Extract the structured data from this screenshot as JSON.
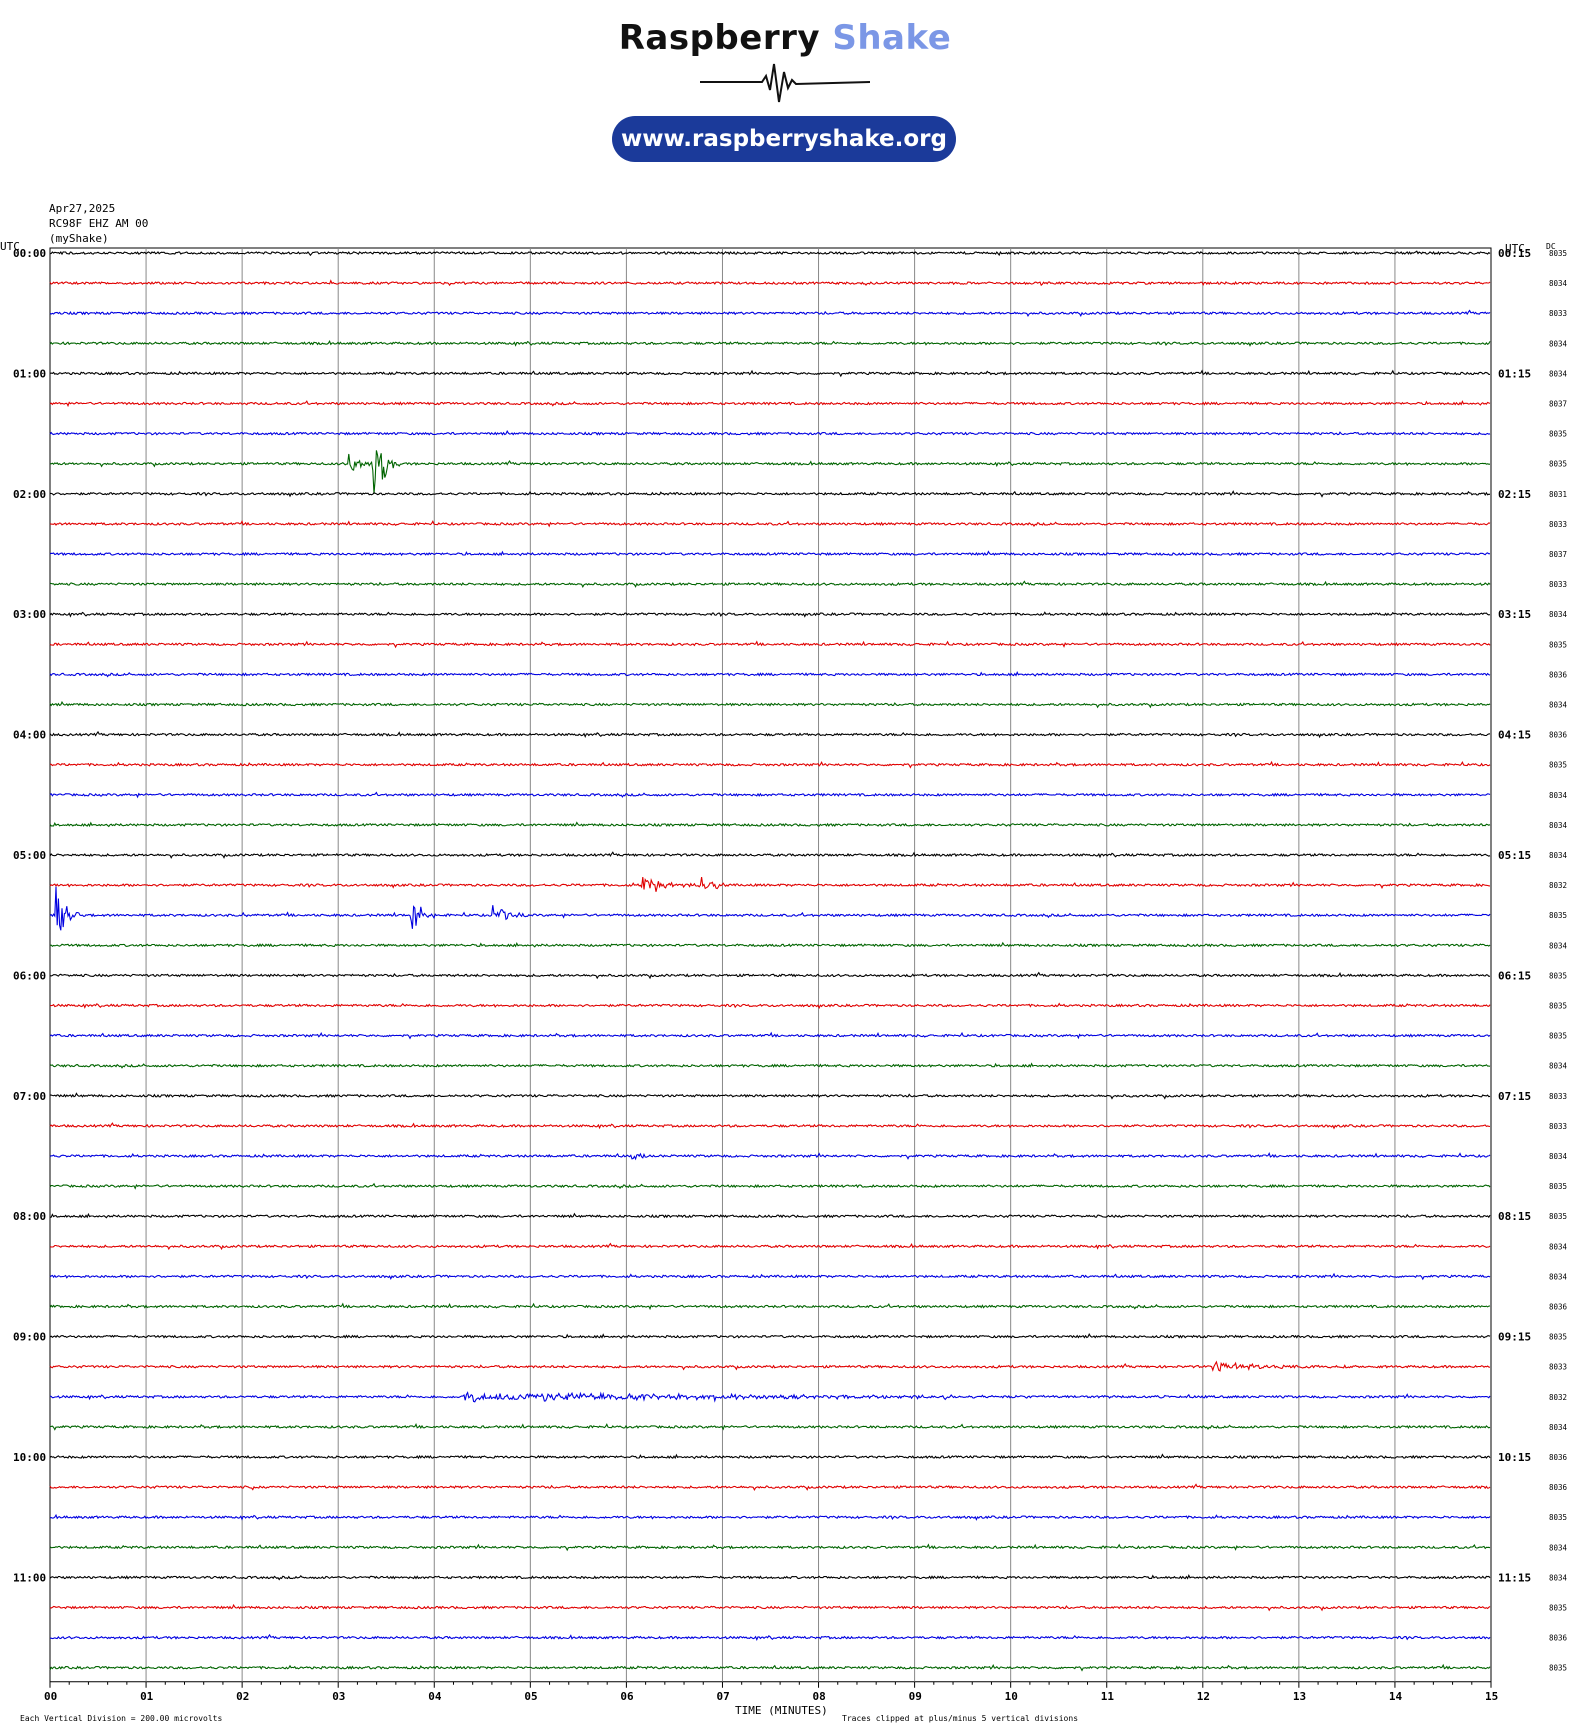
{
  "header": {
    "brand_primary": "Raspberry",
    "brand_secondary": "Shake",
    "url": "www.raspberryshake.org",
    "colors": {
      "brand_dark": "#111111",
      "brand_light": "#7b97e6",
      "pill": "#1b3a9a"
    }
  },
  "meta": {
    "date": "Apr27,2025",
    "station": "RC98F EHZ AM 00",
    "network": "(myShake)"
  },
  "footer": {
    "vertical_division": "Each Vertical Division =  200.00 microvolts",
    "clipping": "Traces clipped at plus/minus 5 vertical divisions"
  },
  "chart_data": {
    "type": "line",
    "title": "",
    "xlabel": "TIME (MINUTES)",
    "ylabel": "",
    "left_axis_label": "UTC",
    "right_axis_label": "UTC",
    "dc_column_label": "DC",
    "xlim": [
      0,
      15
    ],
    "x_ticks": [
      "00",
      "01",
      "02",
      "03",
      "04",
      "05",
      "06",
      "07",
      "08",
      "09",
      "10",
      "11",
      "12",
      "13",
      "14",
      "15"
    ],
    "grid": true,
    "minutes_per_line": 15,
    "line_colors": [
      "#000000",
      "#e00000",
      "#0000e0",
      "#006400"
    ],
    "left_hour_labels": [
      "00:00",
      "01:00",
      "02:00",
      "03:00",
      "04:00",
      "05:00",
      "06:00",
      "07:00",
      "08:00",
      "09:00",
      "10:00",
      "11:00"
    ],
    "right_hour_labels": [
      "00:15",
      "01:15",
      "02:15",
      "03:15",
      "04:15",
      "05:15",
      "06:15",
      "07:15",
      "08:15",
      "09:15",
      "10:15",
      "11:15"
    ],
    "dc_offsets": [
      "8035",
      "8034",
      "8033",
      "8034",
      "8034",
      "8037",
      "8035",
      "8035",
      "8031",
      "8033",
      "8037",
      "8033",
      "8034",
      "8035",
      "8036",
      "8034",
      "8036",
      "8035",
      "8034",
      "8034",
      "8034",
      "8032",
      "8035",
      "8034",
      "8035",
      "8035",
      "8035",
      "8034",
      "8033",
      "8033",
      "8034",
      "8035",
      "8035",
      "8034",
      "8034",
      "8036",
      "8035",
      "8033",
      "8032",
      "8034",
      "8036",
      "8036",
      "8035",
      "8034",
      "8034",
      "8035",
      "8036",
      "8035"
    ],
    "events": [
      {
        "line": 7,
        "minute": 3.35,
        "amplitude": 7,
        "duration": 0.3
      },
      {
        "line": 7,
        "minute": 3.1,
        "amplitude": 1.5,
        "duration": 0.4
      },
      {
        "line": 21,
        "minute": 6.15,
        "amplitude": 1.6,
        "duration": 0.6
      },
      {
        "line": 21,
        "minute": 6.75,
        "amplitude": 1.8,
        "duration": 0.3
      },
      {
        "line": 22,
        "minute": 0.05,
        "amplitude": 5,
        "duration": 0.25
      },
      {
        "line": 22,
        "minute": 3.75,
        "amplitude": 3.5,
        "duration": 0.3
      },
      {
        "line": 22,
        "minute": 4.6,
        "amplitude": 2.0,
        "duration": 0.35
      },
      {
        "line": 22,
        "minute": 2.0,
        "amplitude": 1.2,
        "duration": 0.05
      },
      {
        "line": 37,
        "minute": 12.1,
        "amplitude": 0.6,
        "duration": 1.7
      },
      {
        "line": 38,
        "minute": 4.3,
        "amplitude": 0.7,
        "duration": 7.5
      },
      {
        "line": 41,
        "minute": 2.1,
        "amplitude": 0.8,
        "duration": 0.05
      },
      {
        "line": 30,
        "minute": 6.05,
        "amplitude": 0.6,
        "duration": 0.35
      }
    ]
  }
}
